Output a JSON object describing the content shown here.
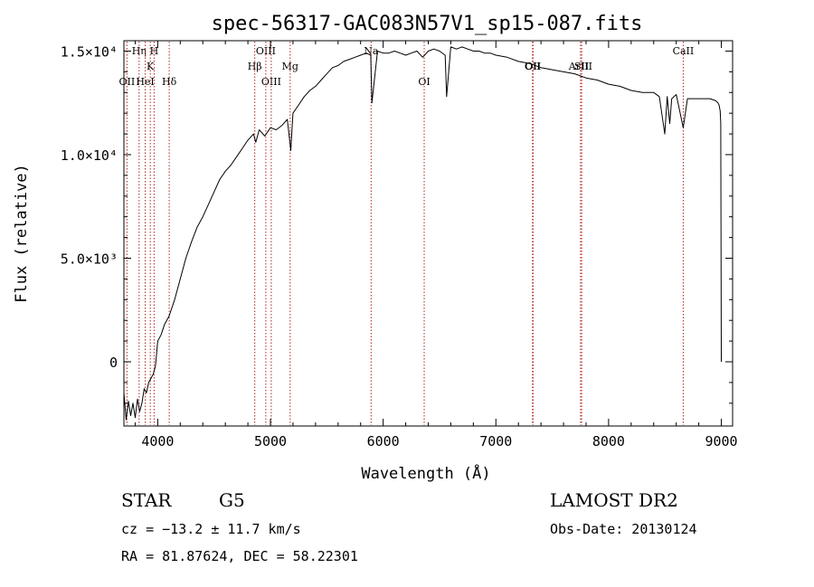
{
  "chart_data": {
    "type": "line",
    "title": "spec-56317-GAC083N57V1_sp15-087.fits",
    "xlabel": "Wavelength (Å)",
    "ylabel": "Flux (relative)",
    "xlim": [
      3700,
      9100
    ],
    "ylim": [
      -3100,
      15500
    ],
    "x_ticks": [
      4000,
      5000,
      6000,
      7000,
      8000,
      9000
    ],
    "y_ticks": [
      {
        "value": 0,
        "label": "0"
      },
      {
        "value": 5000,
        "label": "5.0×10³"
      },
      {
        "value": 10000,
        "label": "1.0×10⁴"
      },
      {
        "value": 15000,
        "label": "1.5×10⁴"
      }
    ],
    "grid": false,
    "series": [
      {
        "x": [
          3700,
          3720,
          3740,
          3760,
          3780,
          3800,
          3820,
          3840,
          3860,
          3880,
          3900,
          3920,
          3940,
          3960,
          3980,
          4000,
          4030,
          4060,
          4100,
          4150,
          4200,
          4250,
          4300,
          4350,
          4400,
          4450,
          4500,
          4550,
          4600,
          4650,
          4700,
          4750,
          4800,
          4850,
          4870,
          4900,
          4950,
          5000,
          5050,
          5100,
          5150,
          5180,
          5200,
          5250,
          5300,
          5350,
          5400,
          5450,
          5500,
          5550,
          5600,
          5650,
          5700,
          5750,
          5800,
          5850,
          5890,
          5900,
          5950,
          6000,
          6050,
          6100,
          6150,
          6200,
          6250,
          6300,
          6350,
          6400,
          6450,
          6500,
          6550,
          6563,
          6600,
          6650,
          6700,
          6750,
          6800,
          6850,
          6900,
          6950,
          7000,
          7100,
          7200,
          7300,
          7400,
          7500,
          7600,
          7700,
          7800,
          7900,
          8000,
          8100,
          8200,
          8300,
          8400,
          8450,
          8498,
          8520,
          8542,
          8560,
          8600,
          8662,
          8700,
          8800,
          8900,
          8950,
          8970,
          8980,
          8990,
          8995,
          9000
        ],
        "y": [
          -1500,
          -2800,
          -1900,
          -2600,
          -2000,
          -2700,
          -1800,
          -2400,
          -2000,
          -1300,
          -1500,
          -1000,
          -800,
          -600,
          -200,
          1000,
          1300,
          1800,
          2200,
          3000,
          4000,
          5000,
          5800,
          6500,
          7000,
          7600,
          8200,
          8800,
          9200,
          9500,
          9900,
          10300,
          10700,
          11000,
          10600,
          11200,
          10900,
          11300,
          11200,
          11400,
          11700,
          10200,
          12000,
          12400,
          12800,
          13100,
          13300,
          13600,
          13900,
          14200,
          14300,
          14500,
          14600,
          14700,
          14800,
          14900,
          14800,
          12500,
          15000,
          14900,
          14900,
          15000,
          14900,
          14800,
          14900,
          15000,
          14700,
          15000,
          15100,
          15000,
          14800,
          12800,
          15200,
          15100,
          15200,
          15100,
          15000,
          15000,
          14900,
          14900,
          14800,
          14700,
          14500,
          14400,
          14200,
          14100,
          14000,
          13900,
          13700,
          13600,
          13400,
          13300,
          13100,
          13000,
          13000,
          12800,
          11000,
          12800,
          11500,
          12700,
          12900,
          11300,
          12700,
          12700,
          12700,
          12600,
          12500,
          12400,
          12100,
          11500,
          0
        ]
      }
    ],
    "spectral_lines": [
      {
        "label": "OII",
        "x": 3727,
        "row": 3
      },
      {
        "label": "Hη",
        "x": 3835,
        "row": 1
      },
      {
        "label": "HeI",
        "x": 3889,
        "row": 3
      },
      {
        "label": "K",
        "x": 3934,
        "row": 2
      },
      {
        "label": "H",
        "x": 3968,
        "row": 1
      },
      {
        "label": "Hδ",
        "x": 4102,
        "row": 3
      },
      {
        "label": "Hβ",
        "x": 4861,
        "row": 2
      },
      {
        "label": "OIII",
        "x": 4959,
        "row": 1
      },
      {
        "label": "OIII",
        "x": 5007,
        "row": 3
      },
      {
        "label": "Mg",
        "x": 5175,
        "row": 2
      },
      {
        "label": "Na",
        "x": 5893,
        "row": 1
      },
      {
        "label": "OI",
        "x": 6364,
        "row": 3
      },
      {
        "label": "OII",
        "x": 7325,
        "row": 2
      },
      {
        "label": "OII",
        "x": 7330,
        "row": 2
      },
      {
        "label": "ArIII",
        "x": 7751,
        "row": 2
      },
      {
        "label": "SII",
        "x": 7761,
        "row": 2
      },
      {
        "label": "CaII",
        "x": 8662,
        "row": 1
      }
    ]
  },
  "info": {
    "object_class": "STAR",
    "subclass": "G5",
    "survey": "LAMOST DR2",
    "redshift": "cz = −13.2 ± 11.7 km/s",
    "obs_date": "Obs-Date: 20130124",
    "coords": "RA =  81.87624, DEC =  58.22301"
  }
}
